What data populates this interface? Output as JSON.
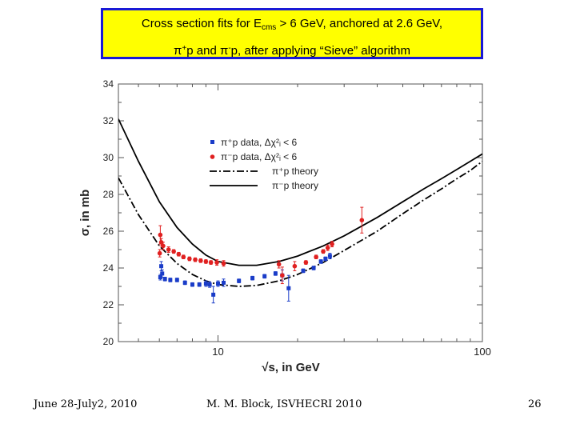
{
  "title": {
    "line1_pre": "Cross section fits for E",
    "line1_sub": "cms",
    "line1_post": " > 6 GeV, anchored at 2.6 GeV,",
    "line2_pi1": "π",
    "line2_sup1": "+",
    "line2_mid": "p and ",
    "line2_pi2": "π",
    "line2_sup2": "-",
    "line2_post": "p, after applying “Sieve” algorithm"
  },
  "footer": {
    "date": "June 28-July2, 2010",
    "author": "M. M. Block, ISVHECRI 2010",
    "page": "26"
  },
  "colors": {
    "title_bg": "#ffff00",
    "title_border": "#1a1ad6",
    "pi_plus_data": "#1a3cc8",
    "pi_minus_data": "#e02020",
    "theory_line": "#000000"
  },
  "chart_data": {
    "type": "scatter",
    "xscale": "log",
    "xlim": [
      4.2,
      100
    ],
    "ylim": [
      20,
      34
    ],
    "xticks": [
      10,
      100
    ],
    "xtick_labels": [
      "10",
      "100"
    ],
    "yticks": [
      20,
      22,
      24,
      26,
      28,
      30,
      32,
      34
    ],
    "ytick_labels": [
      "20",
      "22",
      "24",
      "26",
      "28",
      "30",
      "32",
      "34"
    ],
    "xlabel": "√s, in GeV",
    "ylabel": "σ, in mb",
    "legend": {
      "position": "top-center",
      "entries": [
        {
          "label": "π⁺p data, Δχ²ᵢ < 6",
          "kind": "marker-square",
          "color": "#1a3cc8"
        },
        {
          "label": "π⁻p data, Δχ²ᵢ < 6",
          "kind": "marker-circle",
          "color": "#e02020"
        },
        {
          "label": "π⁺p theory",
          "kind": "dash-dot"
        },
        {
          "label": "π⁻p theory",
          "kind": "solid"
        }
      ]
    },
    "series": [
      {
        "name": "π⁺p theory",
        "kind": "dash-dot",
        "x": [
          4.2,
          5,
          6,
          7,
          8,
          9,
          10,
          12,
          14,
          17,
          20,
          25,
          30,
          40,
          50,
          60,
          70,
          80,
          90,
          100
        ],
        "y": [
          28.9,
          26.9,
          25.2,
          24.25,
          23.65,
          23.3,
          23.1,
          23.0,
          23.05,
          23.3,
          23.65,
          24.3,
          24.95,
          26.0,
          26.95,
          27.7,
          28.3,
          28.85,
          29.3,
          29.8
        ]
      },
      {
        "name": "π⁻p theory",
        "kind": "solid",
        "x": [
          4.2,
          5,
          6,
          7,
          8,
          9,
          10,
          12,
          14,
          17,
          20,
          25,
          30,
          40,
          50,
          60,
          70,
          80,
          90,
          100
        ],
        "y": [
          32.1,
          29.8,
          27.6,
          26.2,
          25.3,
          24.7,
          24.35,
          24.15,
          24.15,
          24.35,
          24.65,
          25.2,
          25.75,
          26.75,
          27.6,
          28.3,
          28.85,
          29.35,
          29.8,
          30.2
        ]
      },
      {
        "name": "π⁺p data, Δχ²ᵢ < 6",
        "kind": "marker-square",
        "points": [
          {
            "x": 6.05,
            "y": 23.5,
            "err": 0.15
          },
          {
            "x": 6.1,
            "y": 24.1,
            "err": 0.25
          },
          {
            "x": 6.15,
            "y": 23.7,
            "err": 0.2
          },
          {
            "x": 6.3,
            "y": 23.4,
            "err": 0.1
          },
          {
            "x": 6.6,
            "y": 23.35,
            "err": 0.1
          },
          {
            "x": 7.0,
            "y": 23.35,
            "err": 0.1
          },
          {
            "x": 7.5,
            "y": 23.2,
            "err": 0.1
          },
          {
            "x": 8.0,
            "y": 23.1,
            "err": 0.1
          },
          {
            "x": 8.5,
            "y": 23.1,
            "err": 0.1
          },
          {
            "x": 9.0,
            "y": 23.15,
            "err": 0.15
          },
          {
            "x": 9.3,
            "y": 23.1,
            "err": 0.15
          },
          {
            "x": 9.6,
            "y": 22.55,
            "err": 0.45
          },
          {
            "x": 10.0,
            "y": 23.15,
            "err": 0.15
          },
          {
            "x": 10.5,
            "y": 23.2,
            "err": 0.2
          },
          {
            "x": 12.0,
            "y": 23.3,
            "err": 0.1
          },
          {
            "x": 13.5,
            "y": 23.45,
            "err": 0.1
          },
          {
            "x": 15.0,
            "y": 23.55,
            "err": 0.1
          },
          {
            "x": 16.5,
            "y": 23.7,
            "err": 0.1
          },
          {
            "x": 17.5,
            "y": 23.6,
            "err": 0.3
          },
          {
            "x": 18.5,
            "y": 22.9,
            "err": 0.7
          },
          {
            "x": 21.0,
            "y": 23.85,
            "err": 0.1
          },
          {
            "x": 23.0,
            "y": 24.0,
            "err": 0.1
          },
          {
            "x": 24.5,
            "y": 24.35,
            "err": 0.1
          },
          {
            "x": 25.5,
            "y": 24.5,
            "err": 0.1
          },
          {
            "x": 26.5,
            "y": 24.65,
            "err": 0.15
          }
        ]
      },
      {
        "name": "π⁻p data, Δχ²ᵢ < 6",
        "kind": "marker-circle",
        "points": [
          {
            "x": 6.02,
            "y": 24.8,
            "err": 0.2
          },
          {
            "x": 6.05,
            "y": 25.8,
            "err": 0.5
          },
          {
            "x": 6.1,
            "y": 25.4,
            "err": 0.2
          },
          {
            "x": 6.2,
            "y": 25.2,
            "err": 0.2
          },
          {
            "x": 6.5,
            "y": 25.0,
            "err": 0.15
          },
          {
            "x": 6.8,
            "y": 24.9,
            "err": 0.1
          },
          {
            "x": 7.1,
            "y": 24.75,
            "err": 0.1
          },
          {
            "x": 7.4,
            "y": 24.6,
            "err": 0.1
          },
          {
            "x": 7.8,
            "y": 24.5,
            "err": 0.1
          },
          {
            "x": 8.2,
            "y": 24.45,
            "err": 0.1
          },
          {
            "x": 8.6,
            "y": 24.4,
            "err": 0.1
          },
          {
            "x": 9.0,
            "y": 24.35,
            "err": 0.1
          },
          {
            "x": 9.4,
            "y": 24.3,
            "err": 0.1
          },
          {
            "x": 9.9,
            "y": 24.3,
            "err": 0.15
          },
          {
            "x": 10.5,
            "y": 24.25,
            "err": 0.15
          },
          {
            "x": 17.0,
            "y": 24.2,
            "err": 0.2
          },
          {
            "x": 17.5,
            "y": 23.6,
            "err": 0.45
          },
          {
            "x": 19.5,
            "y": 24.1,
            "err": 0.25
          },
          {
            "x": 21.5,
            "y": 24.3,
            "err": 0.1
          },
          {
            "x": 23.5,
            "y": 24.6,
            "err": 0.1
          },
          {
            "x": 25.0,
            "y": 24.9,
            "err": 0.1
          },
          {
            "x": 26.0,
            "y": 25.1,
            "err": 0.15
          },
          {
            "x": 27.0,
            "y": 25.3,
            "err": 0.15
          },
          {
            "x": 35.0,
            "y": 26.6,
            "err": 0.7
          }
        ]
      }
    ]
  }
}
